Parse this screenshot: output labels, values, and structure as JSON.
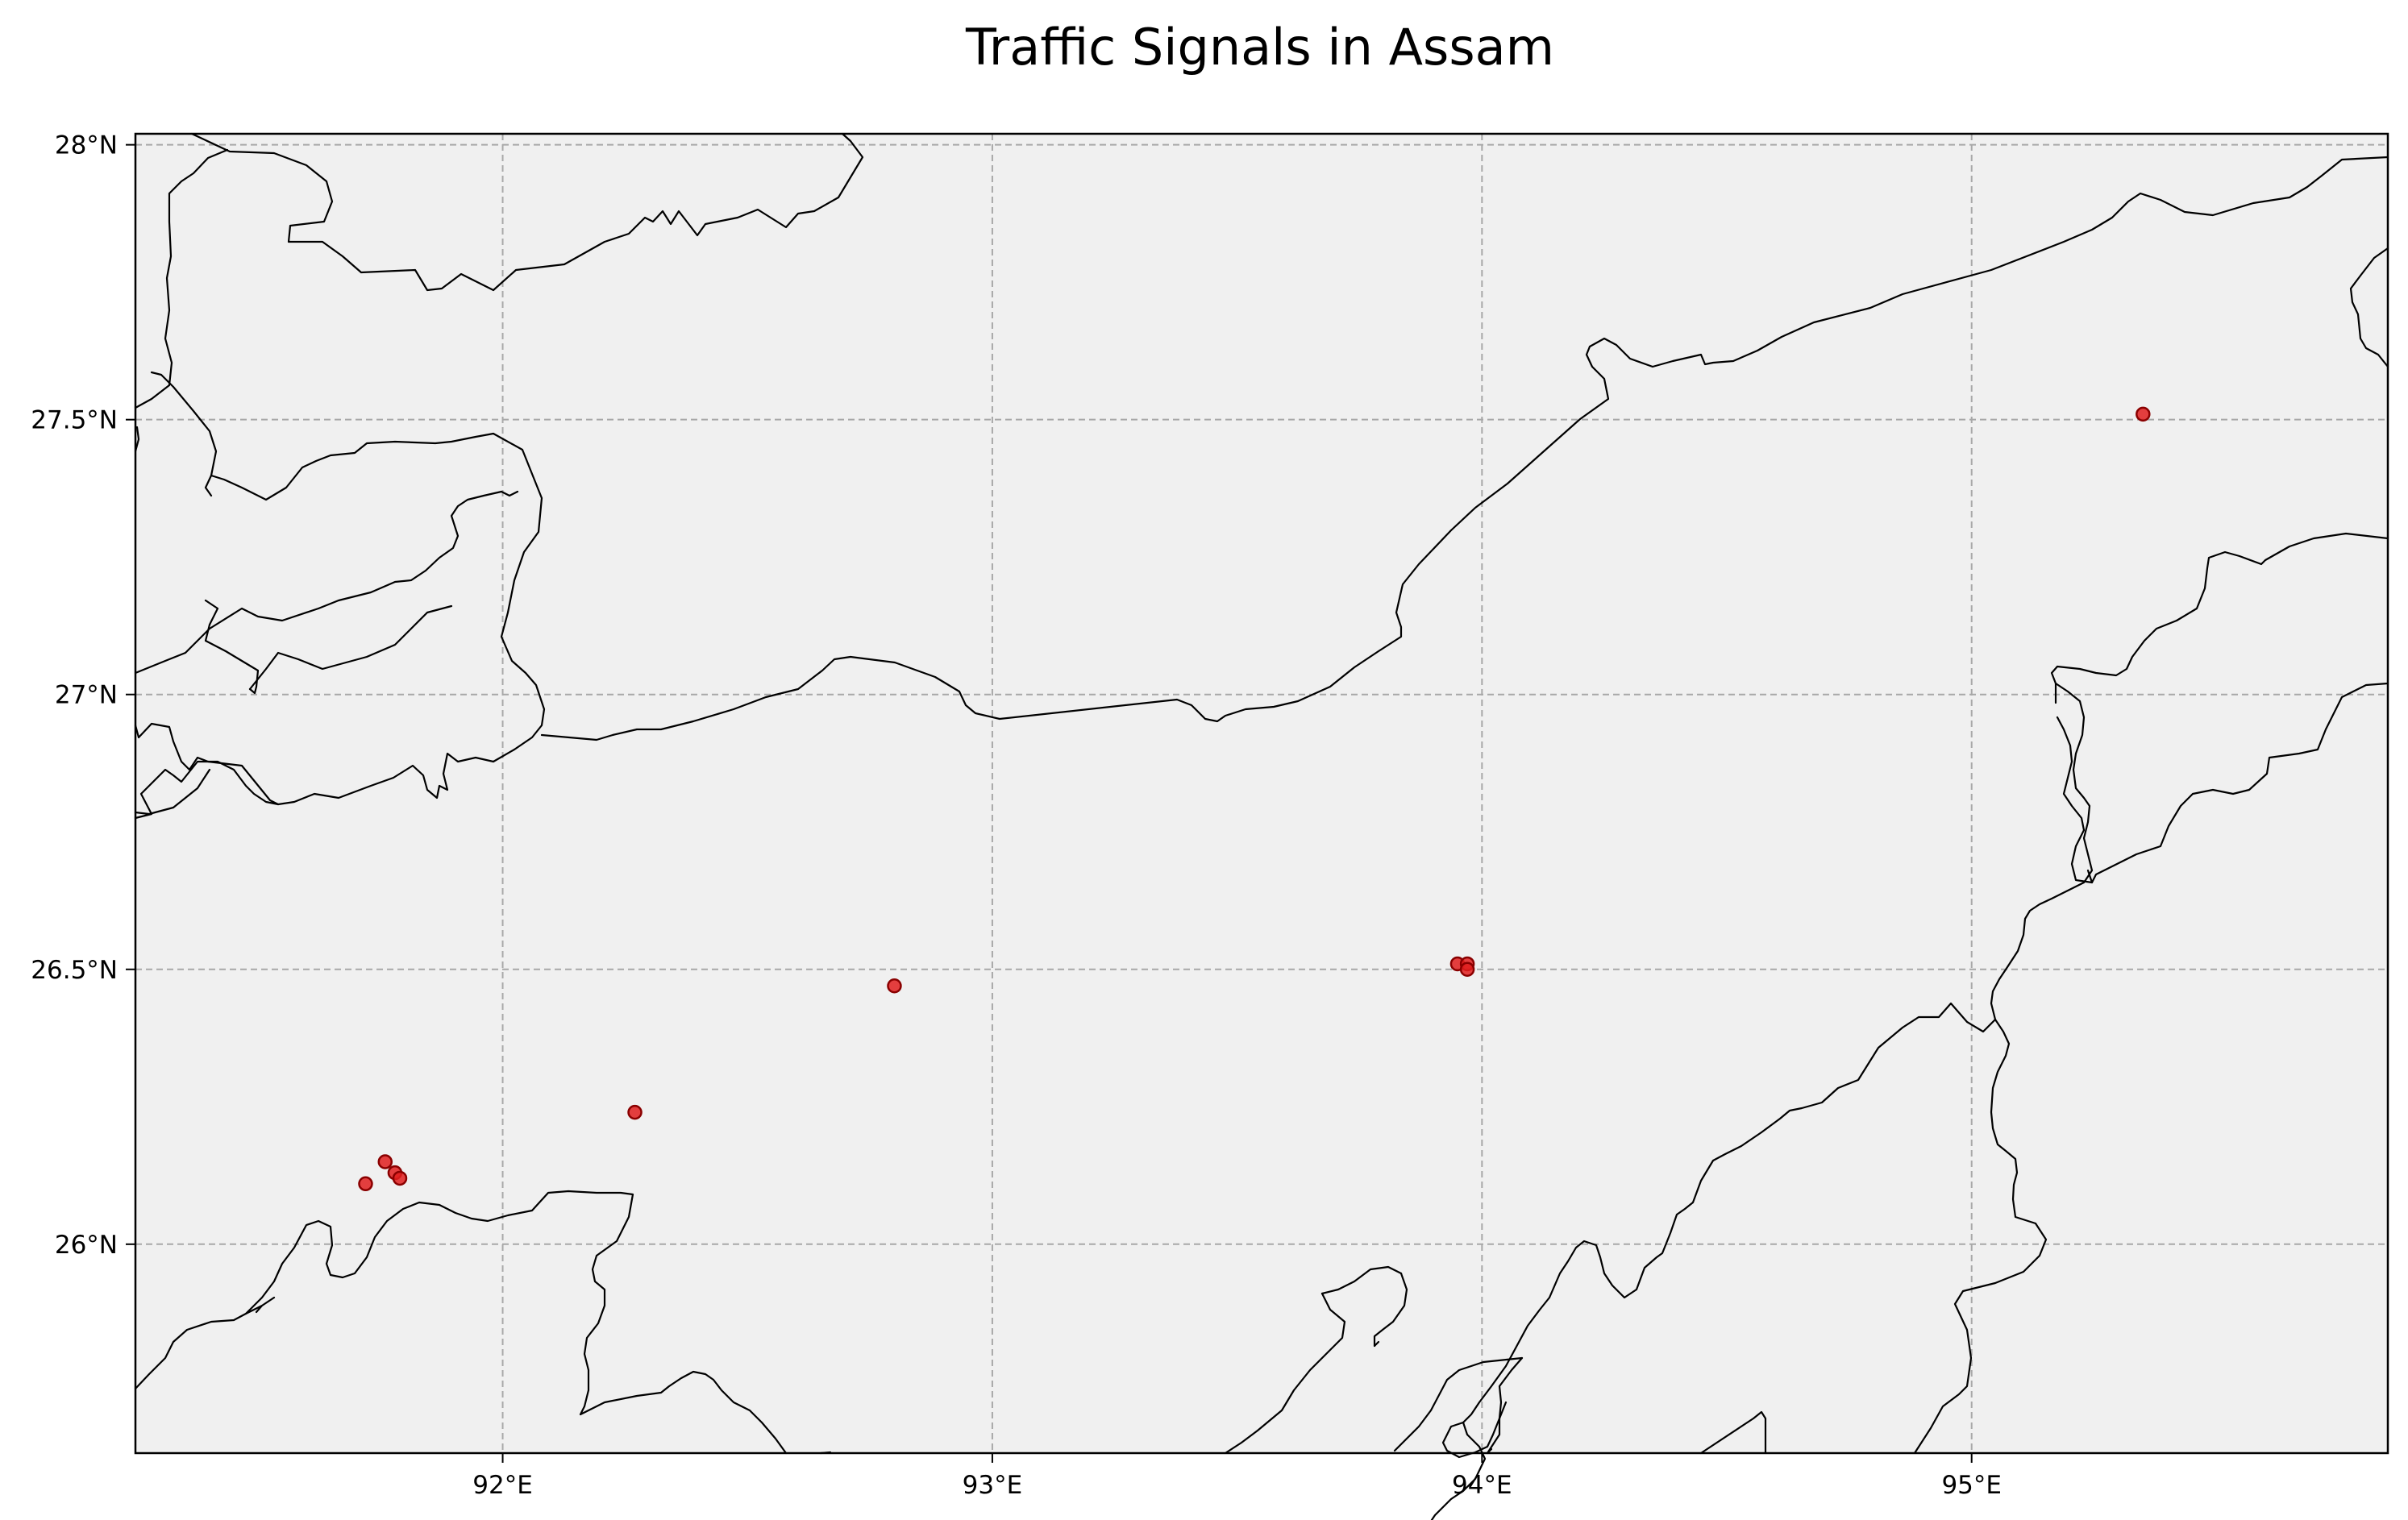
{
  "map": {
    "title": "Traffic Signals in Assam",
    "projection": "PlateCarree",
    "extent": {
      "lon_min": 91.25,
      "lon_max": 95.85,
      "lat_min": 25.62,
      "lat_max": 28.02
    },
    "background_color": "#f0f0f0",
    "grid": true,
    "x_ticks": [
      {
        "value": 92,
        "label": "92°E"
      },
      {
        "value": 93,
        "label": "93°E"
      },
      {
        "value": 94,
        "label": "94°E"
      },
      {
        "value": 95,
        "label": "95°E"
      }
    ],
    "y_ticks": [
      {
        "value": 28,
        "label": "28°N"
      },
      {
        "value": 27.5,
        "label": "27.5°N"
      },
      {
        "value": 27,
        "label": "27°N"
      },
      {
        "value": 26.5,
        "label": "26.5°N"
      },
      {
        "value": 26,
        "label": "26°N"
      }
    ],
    "marker_color": "#e01f1f"
  },
  "chart_data": {
    "type": "scatter",
    "title": "Traffic Signals in Assam",
    "xlabel": "",
    "ylabel": "",
    "xlim": [
      91.25,
      95.85
    ],
    "ylim": [
      25.62,
      28.02
    ],
    "grid": true,
    "points": [
      {
        "lon": 91.72,
        "lat": 26.11
      },
      {
        "lon": 91.76,
        "lat": 26.15
      },
      {
        "lon": 91.78,
        "lat": 26.13
      },
      {
        "lon": 91.79,
        "lat": 26.12
      },
      {
        "lon": 92.27,
        "lat": 26.24
      },
      {
        "lon": 92.8,
        "lat": 26.47
      },
      {
        "lon": 93.95,
        "lat": 26.51
      },
      {
        "lon": 93.97,
        "lat": 26.51
      },
      {
        "lon": 93.97,
        "lat": 26.5
      },
      {
        "lon": 95.35,
        "lat": 27.51
      }
    ]
  }
}
